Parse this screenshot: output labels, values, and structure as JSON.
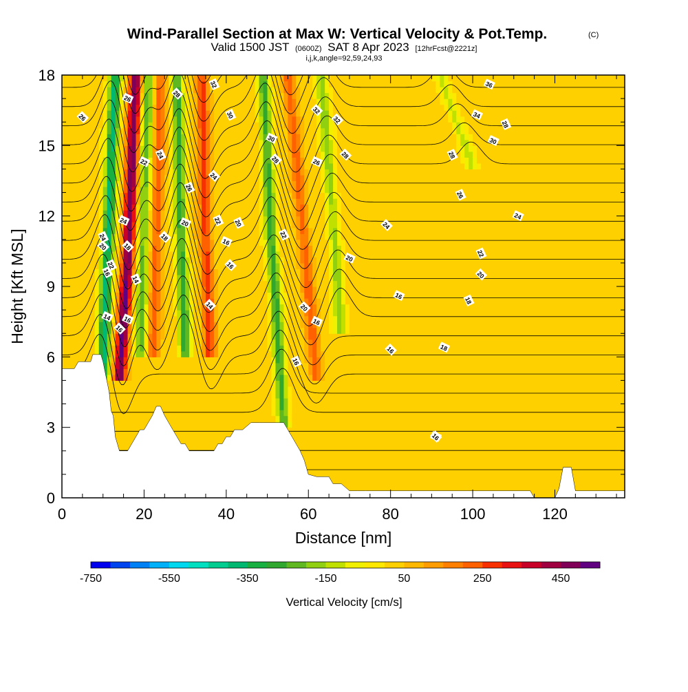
{
  "chart_data": {
    "type": "heatmap",
    "title": {
      "main": "Wind-Parallel Section at Max W: Vertical Velocity & Pot.Temp.",
      "main_suffix": "(C)",
      "valid_prefix": "Valid 1500 JST",
      "valid_utc": "(0600Z)",
      "valid_date": "SAT 8 Apr 2023",
      "forecast": "[12hrFcst@2221z]",
      "indices": "i,j,k,angle=92,59,24,93"
    },
    "xlabel": "Distance [nm]",
    "ylabel": "Height [Kft MSL]",
    "xlim": [
      0,
      137
    ],
    "ylim": [
      0,
      18
    ],
    "xticks": [
      "0",
      "20",
      "40",
      "60",
      "80",
      "100",
      "120"
    ],
    "yticks": [
      "0",
      "3",
      "6",
      "9",
      "12",
      "15",
      "18"
    ],
    "grid": false,
    "colorbar": {
      "title": "Vertical Velocity [cm/s]",
      "min": -750,
      "max": 550,
      "step": 50,
      "tick_labels": [
        "-750",
        "-550",
        "-350",
        "-150",
        "50",
        "250",
        "450"
      ],
      "colors": [
        "#0000ee",
        "#0044f0",
        "#0080f5",
        "#00b0f8",
        "#00d8f0",
        "#00e0c0",
        "#00cc90",
        "#00b870",
        "#18b040",
        "#30a830",
        "#60b820",
        "#90d010",
        "#c0e000",
        "#f0f000",
        "#ffe800",
        "#ffd000",
        "#ffb800",
        "#ff9c00",
        "#ff8000",
        "#ff6000",
        "#f83000",
        "#e81010",
        "#c80028",
        "#a00040",
        "#800058",
        "#600080"
      ]
    },
    "terrain": {
      "x": [
        0,
        3,
        4,
        7,
        7.5,
        9.5,
        10,
        11.5,
        12,
        12.5,
        13,
        14,
        16,
        17,
        18,
        19,
        20,
        21,
        22,
        23,
        24,
        25,
        26,
        27,
        28,
        29,
        30,
        31,
        32,
        33,
        34,
        35,
        36,
        37,
        38,
        39,
        40,
        41,
        42,
        44,
        46,
        48,
        50,
        52,
        54,
        55,
        56,
        57,
        58,
        59,
        60,
        62,
        64,
        65,
        66,
        67,
        68,
        70,
        72,
        74,
        114,
        115,
        120,
        121,
        122,
        124,
        125,
        137
      ],
      "height": [
        5.5,
        5.5,
        5.8,
        5.8,
        6.1,
        6.1,
        5.8,
        4.5,
        3.7,
        3.5,
        2.6,
        2.0,
        2.0,
        2.3,
        2.6,
        2.9,
        2.9,
        3.2,
        3.5,
        3.9,
        3.9,
        3.5,
        3.2,
        2.9,
        2.6,
        2.3,
        2.3,
        2.0,
        2.0,
        2.0,
        2.0,
        2.0,
        2.0,
        2.0,
        2.3,
        2.3,
        2.6,
        2.6,
        2.9,
        2.9,
        3.2,
        3.2,
        3.2,
        3.2,
        3.2,
        2.9,
        2.6,
        2.3,
        2.0,
        1.6,
        1.0,
        0.9,
        0.9,
        0.9,
        0.6,
        0.6,
        0.6,
        0.3,
        0.3,
        0.3,
        0.3,
        0.0,
        0.0,
        0.4,
        1.3,
        1.3,
        0.3,
        0.3
      ]
    },
    "series": [
      {
        "variable": "Vertical Velocity",
        "units": "cm/s",
        "features": [
          {
            "kind": "updraft",
            "x": [
              18,
              16,
              14
            ],
            "height": [
              18,
              10,
              5
            ],
            "w": 480
          },
          {
            "kind": "downdraft",
            "x": [
              13,
              11,
              10
            ],
            "height": [
              18,
              10,
              5
            ],
            "w": -400
          },
          {
            "kind": "updraft",
            "x": [
              24,
              23,
              22
            ],
            "height": [
              18,
              11,
              6
            ],
            "w": 200
          },
          {
            "kind": "downdraft",
            "x": [
              21,
              20,
              19
            ],
            "height": [
              18,
              12,
              6
            ],
            "w": -250
          },
          {
            "kind": "downdraft",
            "x": [
              28,
              29,
              30
            ],
            "height": [
              18,
              11,
              6
            ],
            "w": -300
          },
          {
            "kind": "updraft",
            "x": [
              34,
              35,
              36
            ],
            "height": [
              18,
              11,
              6
            ],
            "w": 250
          },
          {
            "kind": "downdraft",
            "x": [
              49,
              51,
              54
            ],
            "height": [
              18,
              11,
              3
            ],
            "w": -300
          },
          {
            "kind": "updraft",
            "x": [
              55,
              59,
              62
            ],
            "height": [
              18,
              11,
              5
            ],
            "w": 200
          },
          {
            "kind": "downdraft",
            "x": [
              63,
              66,
              68
            ],
            "height": [
              18,
              12,
              7
            ],
            "w": -200
          },
          {
            "kind": "downdraft",
            "x": [
              92,
              96,
              100
            ],
            "height": [
              18,
              16,
              14
            ],
            "w": -150
          }
        ]
      },
      {
        "variable": "Potential Temperature",
        "units": "C",
        "levels": [
          14,
          16,
          18,
          20,
          22,
          24,
          26,
          28,
          30,
          32,
          34,
          36
        ]
      }
    ],
    "contour_labels": [
      "26",
      "28",
      "32",
      "36",
      "26",
      "30",
      "34",
      "32",
      "28",
      "30",
      "32",
      "24",
      "22",
      "28",
      "28",
      "26",
      "24",
      "26",
      "30",
      "28",
      "26",
      "24",
      "24",
      "20",
      "24",
      "18",
      "22",
      "20",
      "20",
      "22",
      "16",
      "18",
      "22",
      "20",
      "16",
      "16",
      "16",
      "14",
      "24",
      "14",
      "20",
      "22",
      "16",
      "20",
      "14",
      "16",
      "16",
      "16",
      "18",
      "16",
      "18",
      "16",
      "16"
    ]
  }
}
